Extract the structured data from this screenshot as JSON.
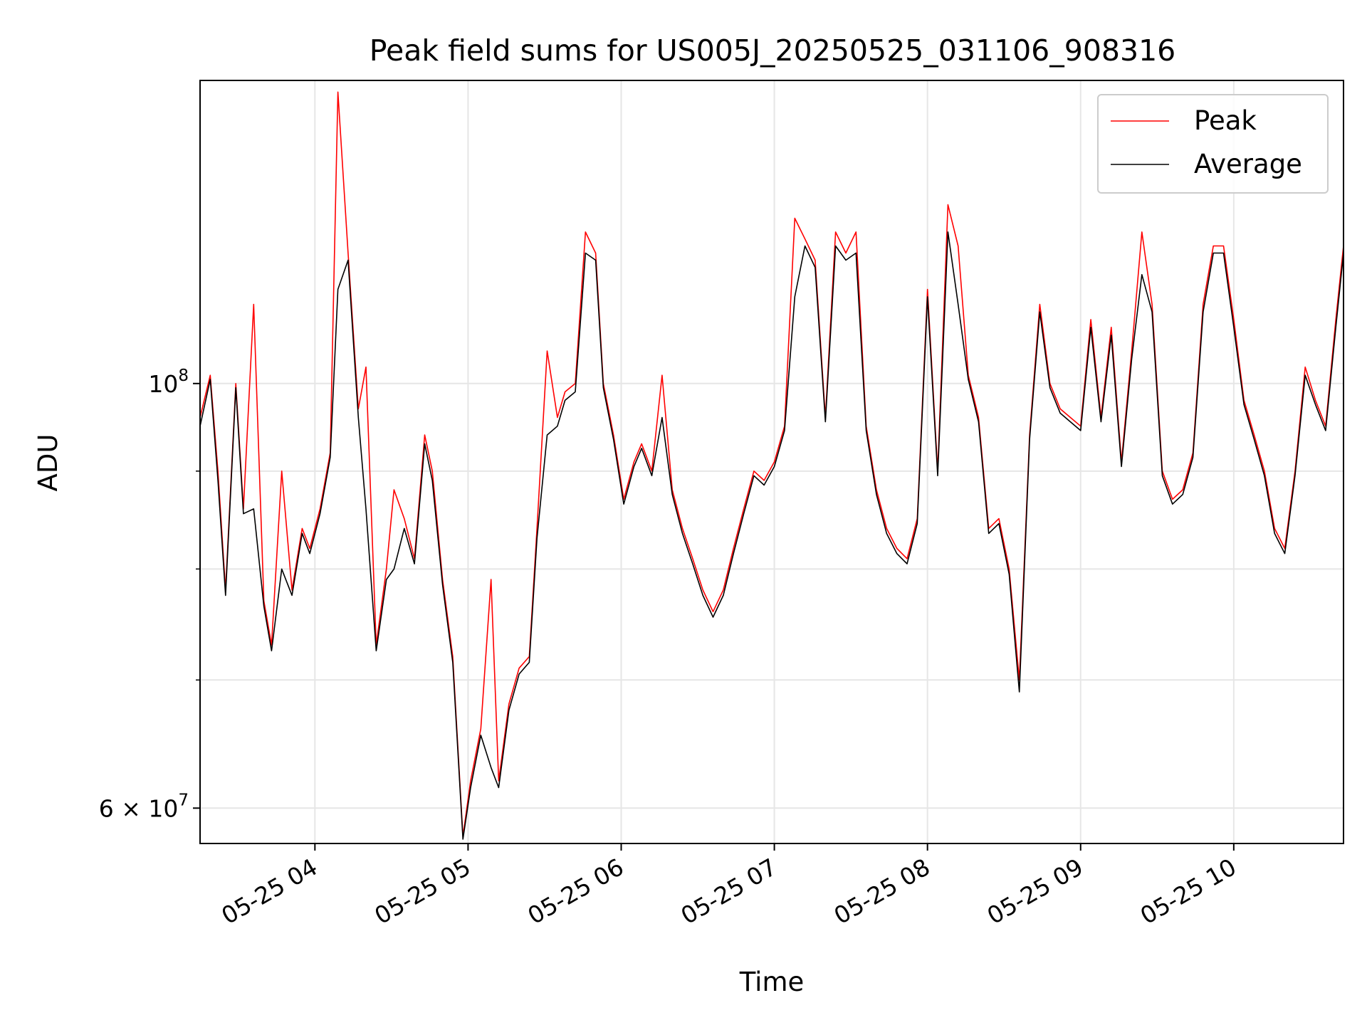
{
  "chart_data": {
    "type": "line",
    "title": "Peak field sums for US005J_20250525_031106_908316",
    "xlabel": "Time",
    "ylabel": "ADU",
    "yscale": "log",
    "grid": true,
    "legend_position": "top-right",
    "xlim": [
      "2025-05-25 03:15",
      "2025-05-25 10:43"
    ],
    "ylim": [
      57500000,
      144000000
    ],
    "x_ticks": [
      "05-25 04",
      "05-25 05",
      "05-25 06",
      "05-25 07",
      "05-25 08",
      "05-25 09",
      "05-25 10"
    ],
    "y_ticks": [
      "6 × 10^7",
      "10^8"
    ],
    "y_tick_labels": [
      {
        "value": 60000000,
        "mantissa": "6 × 10",
        "exp": "7"
      },
      {
        "value": 100000000,
        "mantissa": "10",
        "exp": "8"
      }
    ],
    "series": [
      {
        "name": "Peak",
        "color": "#ff0000",
        "x": [
          "03:15",
          "03:19",
          "03:22",
          "03:25",
          "03:29",
          "03:32",
          "03:36",
          "03:40",
          "03:43",
          "03:47",
          "03:51",
          "03:55",
          "03:58",
          "04:02",
          "04:06",
          "04:09",
          "04:13",
          "04:17",
          "04:20",
          "04:24",
          "04:28",
          "04:31",
          "04:35",
          "04:39",
          "04:43",
          "04:46",
          "04:50",
          "04:54",
          "04:58",
          "05:01",
          "05:05",
          "05:09",
          "05:12",
          "05:16",
          "05:20",
          "05:24",
          "05:27",
          "05:31",
          "05:35",
          "05:38",
          "05:42",
          "05:46",
          "05:50",
          "05:53",
          "05:57",
          "06:01",
          "06:05",
          "06:08",
          "06:12",
          "06:16",
          "06:20",
          "06:24",
          "06:28",
          "06:32",
          "06:36",
          "06:40",
          "06:44",
          "06:48",
          "06:52",
          "06:56",
          "07:00",
          "07:04",
          "07:08",
          "07:12",
          "07:16",
          "07:20",
          "07:24",
          "07:28",
          "07:32",
          "07:36",
          "07:40",
          "07:44",
          "07:48",
          "07:52",
          "07:56",
          "08:00",
          "08:04",
          "08:08",
          "08:12",
          "08:16",
          "08:20",
          "08:24",
          "08:28",
          "08:32",
          "08:36",
          "08:40",
          "08:44",
          "08:48",
          "08:52",
          "08:56",
          "09:00",
          "09:04",
          "09:08",
          "09:12",
          "09:16",
          "09:20",
          "09:24",
          "09:28",
          "09:32",
          "09:36",
          "09:40",
          "09:44",
          "09:48",
          "09:52",
          "09:56",
          "10:00",
          "10:04",
          "10:08",
          "10:12",
          "10:16",
          "10:20",
          "10:24",
          "10:28",
          "10:32",
          "10:36",
          "10:40",
          "10:43"
        ],
        "values": [
          96000000,
          101000000,
          90000000,
          78000000,
          100000000,
          86000000,
          110000000,
          77000000,
          73000000,
          90000000,
          78000000,
          84000000,
          82000000,
          86000000,
          92000000,
          142000000,
          117000000,
          97000000,
          102000000,
          73000000,
          80000000,
          88000000,
          85000000,
          81000000,
          94000000,
          90000000,
          79000000,
          72000000,
          58000000,
          62000000,
          66000000,
          79000000,
          62000000,
          68000000,
          71000000,
          72000000,
          84000000,
          104000000,
          96000000,
          99000000,
          100000000,
          120000000,
          117000000,
          100000000,
          94000000,
          87000000,
          91000000,
          93000000,
          90000000,
          101000000,
          88000000,
          84000000,
          81000000,
          78000000,
          76000000,
          78000000,
          82000000,
          86000000,
          90000000,
          89000000,
          91000000,
          95000000,
          122000000,
          119000000,
          116000000,
          96000000,
          120000000,
          117000000,
          120000000,
          95000000,
          88000000,
          84000000,
          82000000,
          81000000,
          85000000,
          112000000,
          90000000,
          124000000,
          118000000,
          101000000,
          96000000,
          84000000,
          85000000,
          80000000,
          70000000,
          94000000,
          110000000,
          100000000,
          97000000,
          96000000,
          95000000,
          108000000,
          96000000,
          107000000,
          91000000,
          104000000,
          120000000,
          110000000,
          90000000,
          87000000,
          88000000,
          92000000,
          110000000,
          118000000,
          118000000,
          108000000,
          98000000,
          94000000,
          90000000,
          84000000,
          82000000,
          90000000,
          102000000,
          98000000,
          95000000,
          108000000,
          118000000
        ]
      },
      {
        "name": "Average",
        "color": "#000000",
        "x": [
          "03:15",
          "03:19",
          "03:22",
          "03:25",
          "03:29",
          "03:32",
          "03:36",
          "03:40",
          "03:43",
          "03:47",
          "03:51",
          "03:55",
          "03:58",
          "04:02",
          "04:06",
          "04:09",
          "04:13",
          "04:17",
          "04:20",
          "04:24",
          "04:28",
          "04:31",
          "04:35",
          "04:39",
          "04:43",
          "04:46",
          "04:50",
          "04:54",
          "04:58",
          "05:01",
          "05:05",
          "05:09",
          "05:12",
          "05:16",
          "05:20",
          "05:24",
          "05:27",
          "05:31",
          "05:35",
          "05:38",
          "05:42",
          "05:46",
          "05:50",
          "05:53",
          "05:57",
          "06:01",
          "06:05",
          "06:08",
          "06:12",
          "06:16",
          "06:20",
          "06:24",
          "06:28",
          "06:32",
          "06:36",
          "06:40",
          "06:44",
          "06:48",
          "06:52",
          "06:56",
          "07:00",
          "07:04",
          "07:08",
          "07:12",
          "07:16",
          "07:20",
          "07:24",
          "07:28",
          "07:32",
          "07:36",
          "07:40",
          "07:44",
          "07:48",
          "07:52",
          "07:56",
          "08:00",
          "08:04",
          "08:08",
          "08:12",
          "08:16",
          "08:20",
          "08:24",
          "08:28",
          "08:32",
          "08:36",
          "08:40",
          "08:44",
          "08:48",
          "08:52",
          "08:56",
          "09:00",
          "09:04",
          "09:08",
          "09:12",
          "09:16",
          "09:20",
          "09:24",
          "09:28",
          "09:32",
          "09:36",
          "09:40",
          "09:44",
          "09:48",
          "09:52",
          "09:56",
          "10:00",
          "10:04",
          "10:08",
          "10:12",
          "10:16",
          "10:20",
          "10:24",
          "10:28",
          "10:32",
          "10:36",
          "10:40",
          "10:43"
        ],
        "values": [
          95000000,
          100500000,
          89000000,
          77500000,
          99500000,
          85500000,
          86000000,
          76500000,
          72500000,
          80000000,
          77500000,
          83500000,
          81500000,
          85500000,
          91500000,
          112000000,
          116000000,
          96000000,
          86000000,
          72500000,
          79000000,
          80000000,
          84000000,
          80500000,
          93000000,
          89000000,
          78500000,
          71500000,
          57800000,
          61500000,
          65500000,
          63000000,
          61500000,
          67500000,
          70500000,
          71500000,
          83000000,
          94000000,
          95000000,
          98000000,
          99000000,
          117000000,
          116000000,
          99500000,
          93500000,
          86500000,
          90500000,
          92500000,
          89500000,
          96000000,
          87500000,
          83500000,
          80500000,
          77500000,
          75500000,
          77500000,
          81500000,
          85500000,
          89500000,
          88500000,
          90500000,
          94500000,
          111000000,
          118000000,
          115000000,
          95500000,
          118000000,
          116000000,
          117000000,
          94500000,
          87500000,
          83500000,
          81500000,
          80500000,
          84500000,
          111000000,
          89500000,
          120000000,
          110000000,
          100500000,
          95500000,
          83500000,
          84500000,
          79500000,
          69000000,
          93500000,
          109000000,
          99500000,
          96500000,
          95500000,
          94500000,
          107000000,
          95500000,
          106000000,
          90500000,
          103000000,
          114000000,
          109000000,
          89500000,
          86500000,
          87500000,
          91500000,
          109000000,
          117000000,
          117000000,
          107000000,
          97500000,
          93500000,
          89500000,
          83500000,
          81500000,
          89500000,
          101000000,
          97500000,
          94500000,
          107000000,
          117000000
        ]
      }
    ]
  }
}
